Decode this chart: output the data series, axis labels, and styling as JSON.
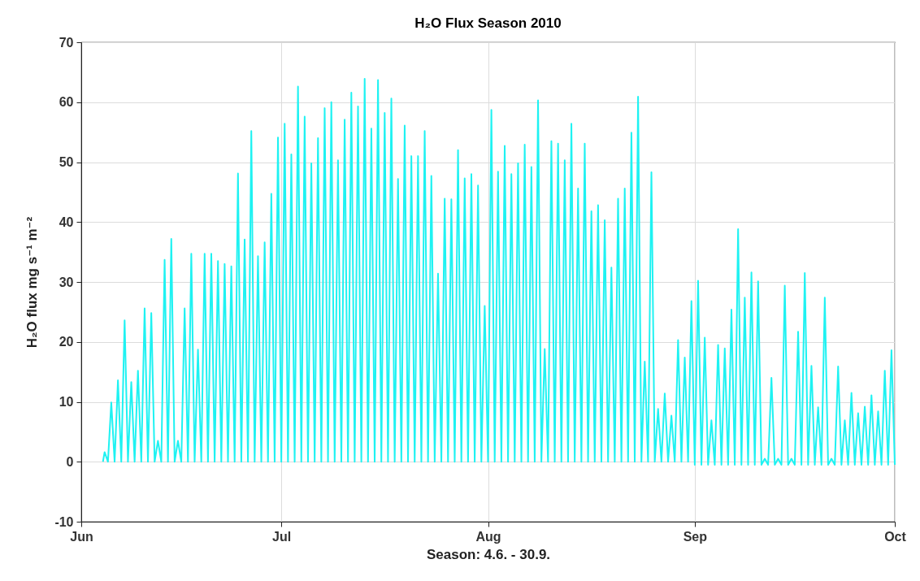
{
  "chart_data": {
    "type": "line",
    "title": "H₂O Flux Season 2010",
    "xlabel": "Season: 4.6. - 30.9.",
    "ylabel": "H₂O flux mg s⁻¹ m⁻²",
    "xlim": [
      "2010-06-01",
      "2010-10-01"
    ],
    "xticks": [
      {
        "value": "2010-06-01",
        "label": "Jun"
      },
      {
        "value": "2010-07-01",
        "label": "Jul"
      },
      {
        "value": "2010-08-01",
        "label": "Aug"
      },
      {
        "value": "2010-09-01",
        "label": "Sep"
      },
      {
        "value": "2010-10-01",
        "label": "Oct"
      }
    ],
    "ylim": [
      -10,
      70
    ],
    "yticks": [
      -10,
      0,
      10,
      20,
      30,
      40,
      50,
      60,
      70
    ],
    "grid": true,
    "series": [
      {
        "color": "#1ef2f2",
        "x": [
          "2010-06-04T06:00",
          "2010-06-04T12:00",
          "2010-06-05T00:00",
          "2010-06-05T12:00",
          "2010-06-06T00:00",
          "2010-06-06T12:00",
          "2010-06-07T00:00",
          "2010-06-07T12:00",
          "2010-06-08T00:00",
          "2010-06-08T12:00",
          "2010-06-09T00:00",
          "2010-06-09T12:00",
          "2010-06-10T00:00",
          "2010-06-10T12:00",
          "2010-06-11T00:00",
          "2010-06-11T12:00",
          "2010-06-12T00:00",
          "2010-06-12T12:00",
          "2010-06-13T00:00",
          "2010-06-13T12:00",
          "2010-06-14T00:00",
          "2010-06-14T12:00",
          "2010-06-15T00:00",
          "2010-06-15T12:00",
          "2010-06-16T00:00",
          "2010-06-16T12:00",
          "2010-06-17T00:00",
          "2010-06-17T12:00",
          "2010-06-18T00:00",
          "2010-06-18T12:00",
          "2010-06-19T00:00",
          "2010-06-19T12:00",
          "2010-06-20T00:00",
          "2010-06-20T12:00",
          "2010-06-21T00:00",
          "2010-06-21T12:00",
          "2010-06-22T00:00",
          "2010-06-22T12:00",
          "2010-06-23T00:00",
          "2010-06-23T12:00",
          "2010-06-24T00:00",
          "2010-06-24T12:00",
          "2010-06-25T00:00",
          "2010-06-25T12:00",
          "2010-06-26T00:00",
          "2010-06-26T12:00",
          "2010-06-27T00:00",
          "2010-06-27T12:00",
          "2010-06-28T00:00",
          "2010-06-28T12:00",
          "2010-06-29T00:00",
          "2010-06-29T12:00",
          "2010-06-30T00:00",
          "2010-06-30T12:00",
          "2010-07-01T00:00",
          "2010-07-01T12:00",
          "2010-07-02T00:00",
          "2010-07-02T12:00",
          "2010-07-03T00:00",
          "2010-07-03T12:00",
          "2010-07-04T00:00",
          "2010-07-04T12:00",
          "2010-07-05T00:00",
          "2010-07-05T12:00",
          "2010-07-06T00:00",
          "2010-07-06T12:00",
          "2010-07-07T00:00",
          "2010-07-07T12:00",
          "2010-07-08T00:00",
          "2010-07-08T12:00",
          "2010-07-09T00:00",
          "2010-07-09T12:00",
          "2010-07-10T00:00",
          "2010-07-10T12:00",
          "2010-07-11T00:00",
          "2010-07-11T12:00",
          "2010-07-12T00:00",
          "2010-07-12T12:00",
          "2010-07-13T00:00",
          "2010-07-13T12:00",
          "2010-07-14T00:00",
          "2010-07-14T12:00",
          "2010-07-15T00:00",
          "2010-07-15T12:00",
          "2010-07-16T00:00",
          "2010-07-16T12:00",
          "2010-07-17T00:00",
          "2010-07-17T12:00",
          "2010-07-18T00:00",
          "2010-07-18T12:00",
          "2010-07-19T00:00",
          "2010-07-19T12:00",
          "2010-07-20T00:00",
          "2010-07-20T12:00",
          "2010-07-21T00:00",
          "2010-07-21T12:00",
          "2010-07-22T00:00",
          "2010-07-22T12:00",
          "2010-07-23T00:00",
          "2010-07-23T12:00",
          "2010-07-24T00:00",
          "2010-07-24T12:00",
          "2010-07-25T00:00",
          "2010-07-25T12:00",
          "2010-07-26T00:00",
          "2010-07-26T12:00",
          "2010-07-27T00:00",
          "2010-07-27T12:00",
          "2010-07-28T00:00",
          "2010-07-28T12:00",
          "2010-07-29T00:00",
          "2010-07-29T12:00",
          "2010-07-30T00:00",
          "2010-07-30T12:00",
          "2010-07-31T00:00",
          "2010-07-31T12:00",
          "2010-08-01T00:00",
          "2010-08-01T12:00",
          "2010-08-02T00:00",
          "2010-08-02T12:00",
          "2010-08-03T00:00",
          "2010-08-03T12:00",
          "2010-08-04T00:00",
          "2010-08-04T12:00",
          "2010-08-05T00:00",
          "2010-08-05T12:00",
          "2010-08-06T00:00",
          "2010-08-06T12:00",
          "2010-08-07T00:00",
          "2010-08-07T12:00",
          "2010-08-08T00:00",
          "2010-08-08T12:00",
          "2010-08-09T00:00",
          "2010-08-09T12:00",
          "2010-08-10T00:00",
          "2010-08-10T12:00",
          "2010-08-11T00:00",
          "2010-08-11T12:00",
          "2010-08-12T00:00",
          "2010-08-12T12:00",
          "2010-08-13T00:00",
          "2010-08-13T12:00",
          "2010-08-14T00:00",
          "2010-08-14T12:00",
          "2010-08-15T00:00",
          "2010-08-15T12:00",
          "2010-08-16T00:00",
          "2010-08-16T12:00",
          "2010-08-17T00:00",
          "2010-08-17T12:00",
          "2010-08-18T00:00",
          "2010-08-18T12:00",
          "2010-08-19T00:00",
          "2010-08-19T12:00",
          "2010-08-20T00:00",
          "2010-08-20T12:00",
          "2010-08-21T00:00",
          "2010-08-21T12:00",
          "2010-08-22T00:00",
          "2010-08-22T12:00",
          "2010-08-23T00:00",
          "2010-08-23T12:00",
          "2010-08-24T00:00",
          "2010-08-24T12:00",
          "2010-08-25T00:00",
          "2010-08-25T12:00",
          "2010-08-26T00:00",
          "2010-08-26T12:00",
          "2010-08-27T00:00",
          "2010-08-27T12:00",
          "2010-08-28T00:00",
          "2010-08-28T12:00",
          "2010-08-29T00:00",
          "2010-08-29T12:00",
          "2010-08-30T00:00",
          "2010-08-30T12:00",
          "2010-08-31T00:00",
          "2010-08-31T12:00",
          "2010-09-01T00:00",
          "2010-09-01T12:00",
          "2010-09-02T00:00",
          "2010-09-02T12:00",
          "2010-09-03T00:00",
          "2010-09-03T12:00",
          "2010-09-04T00:00",
          "2010-09-04T12:00",
          "2010-09-05T00:00",
          "2010-09-05T12:00",
          "2010-09-06T00:00",
          "2010-09-06T12:00",
          "2010-09-07T00:00",
          "2010-09-07T12:00",
          "2010-09-08T00:00",
          "2010-09-08T12:00",
          "2010-09-09T00:00",
          "2010-09-09T12:00",
          "2010-09-10T00:00",
          "2010-09-10T12:00",
          "2010-09-11T00:00",
          "2010-09-11T12:00",
          "2010-09-12T00:00",
          "2010-09-12T12:00",
          "2010-09-13T00:00",
          "2010-09-13T12:00",
          "2010-09-14T00:00",
          "2010-09-14T12:00",
          "2010-09-15T00:00",
          "2010-09-15T12:00",
          "2010-09-16T00:00",
          "2010-09-16T12:00",
          "2010-09-17T00:00",
          "2010-09-17T12:00",
          "2010-09-18T00:00",
          "2010-09-18T12:00",
          "2010-09-19T00:00",
          "2010-09-19T12:00",
          "2010-09-20T00:00",
          "2010-09-20T12:00",
          "2010-09-21T00:00",
          "2010-09-21T12:00",
          "2010-09-22T00:00",
          "2010-09-22T12:00",
          "2010-09-23T00:00",
          "2010-09-23T12:00",
          "2010-09-24T00:00",
          "2010-09-24T12:00",
          "2010-09-25T00:00",
          "2010-09-25T12:00",
          "2010-09-26T00:00",
          "2010-09-26T12:00",
          "2010-09-27T00:00",
          "2010-09-27T12:00",
          "2010-09-28T00:00",
          "2010-09-28T12:00",
          "2010-09-29T00:00",
          "2010-09-29T12:00",
          "2010-09-30T00:00",
          "2010-09-30T12:00",
          "2010-10-01T00:00"
        ],
        "values": [
          0,
          1.6,
          0,
          9.9,
          0,
          13.6,
          0,
          23.6,
          0,
          13.3,
          0,
          15.2,
          0,
          25.6,
          0,
          24.8,
          0,
          3.5,
          0,
          33.7,
          0,
          37.2,
          0,
          3.5,
          0,
          25.6,
          0,
          34.7,
          0,
          18.7,
          0,
          34.7,
          0,
          34.7,
          0,
          33.5,
          0,
          33,
          0,
          32.6,
          0,
          48.1,
          0,
          37.1,
          0,
          55.2,
          0,
          34.3,
          0,
          36.6,
          0,
          44.7,
          0,
          54.1,
          0,
          56.4,
          0,
          51.3,
          0,
          62.6,
          0,
          57.6,
          0,
          49.8,
          0,
          54,
          0,
          59,
          0,
          60,
          0,
          50.3,
          0,
          57.1,
          0,
          61.6,
          0,
          59.3,
          0,
          63.9,
          0,
          55.6,
          0,
          63.7,
          0,
          58.2,
          0,
          60.6,
          0,
          47.2,
          0,
          56.1,
          0,
          51,
          0,
          51,
          0,
          55.2,
          0,
          47.7,
          0,
          31.4,
          0,
          43.9,
          0,
          43.8,
          0,
          52,
          0,
          47.3,
          0,
          48,
          0,
          46.1,
          0,
          26,
          0,
          58.7,
          0,
          48.4,
          0,
          52.7,
          0,
          48,
          0,
          49.8,
          0,
          52.9,
          0,
          49.2,
          0,
          60.3,
          0,
          18.8,
          0,
          53.5,
          0,
          53.1,
          0,
          50.3,
          0,
          56.4,
          0,
          45.6,
          0,
          53.1,
          0,
          41.8,
          0,
          42.8,
          0,
          40.3,
          0,
          32.4,
          0,
          43.9,
          0,
          45.6,
          0,
          54.9,
          0,
          60.9,
          0,
          16.7,
          0,
          48.3,
          0,
          8.8,
          0,
          11.4,
          0,
          7.7,
          0,
          20.3,
          0,
          17.4,
          0,
          26.8,
          -0.5,
          30.2,
          -0.5,
          20.7,
          -0.5,
          6.9,
          -0.5,
          19.5,
          -0.5,
          18.9,
          -0.5,
          25.4,
          -0.5,
          38.8,
          -0.5,
          27.4,
          -0.5,
          31.6,
          -0.5,
          30.1,
          -0.5,
          0.5,
          -0.5,
          14,
          -0.5,
          0.5,
          -0.5,
          29.4,
          -0.5,
          0.5,
          -0.5,
          21.7,
          -0.5,
          31.5,
          -0.5,
          16,
          -0.5,
          9.1,
          -0.5,
          27.4,
          -0.5,
          0.5,
          -0.5,
          15.9,
          -0.5,
          6.9,
          -0.5,
          11.5,
          -0.5,
          8.1,
          -0.5,
          9.2,
          -0.5,
          11.1,
          -0.5,
          8.4,
          -0.5,
          15.2,
          -0.5,
          18.6,
          -0.5
        ]
      }
    ]
  }
}
